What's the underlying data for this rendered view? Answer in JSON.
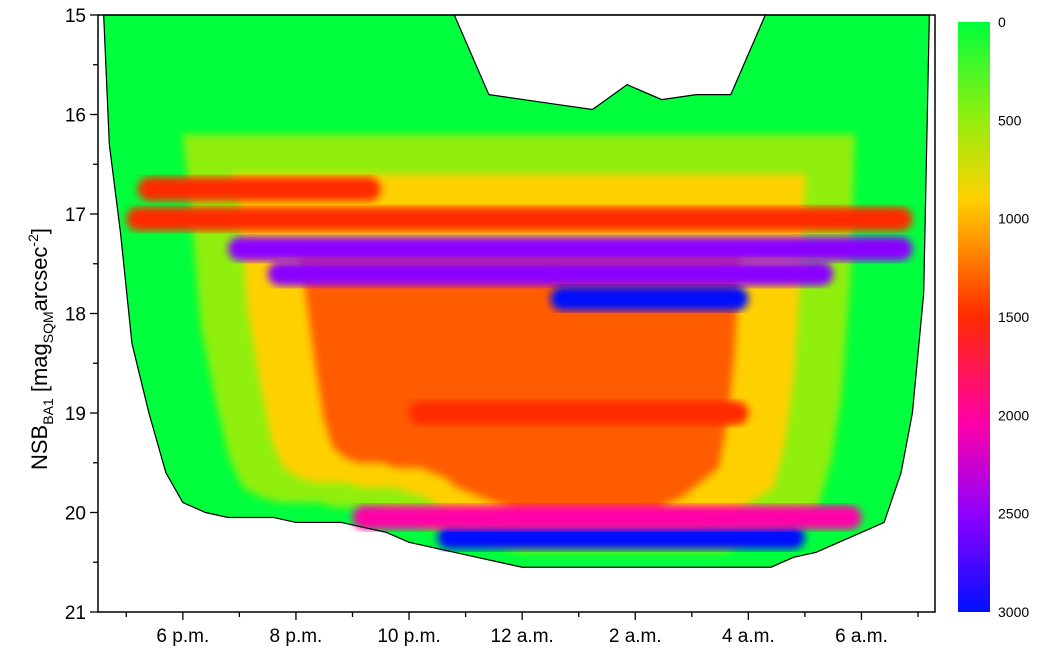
{
  "chart_data": {
    "type": "heatmap",
    "title": "",
    "xlabel": "",
    "ylabel": {
      "base": "NSB",
      "base_sub": "BA1",
      "mid": " [mag",
      "mid_sub": "SQM",
      "end": "arcsec",
      "end_sup": "-2",
      "close": "]"
    },
    "x_tick_labels": [
      "6 p.m.",
      "8 p.m.",
      "10 p.m.",
      "12 a.m.",
      "2 a.m.",
      "4 a.m.",
      "6 a.m."
    ],
    "x_tick_hours": [
      18,
      20,
      22,
      24,
      26,
      28,
      30
    ],
    "x_range_hours": [
      16.5,
      31.3
    ],
    "y_tick_labels": [
      "15",
      "16",
      "17",
      "18",
      "19",
      "20",
      "21"
    ],
    "y_tick_values": [
      15,
      16,
      17,
      18,
      19,
      20,
      21
    ],
    "ylim": [
      15,
      21
    ],
    "y_inverted": true,
    "colorbar": {
      "labels": [
        "0",
        "500",
        "1000",
        "1500",
        "2000",
        "2500",
        "3000"
      ],
      "values": [
        0,
        500,
        1000,
        1500,
        2000,
        2500,
        3000
      ],
      "colors": [
        "#00ff3c",
        "#90ef10",
        "#ffd000",
        "#ff2a00",
        "#ff00a8",
        "#8a00ff",
        "#0010ff"
      ]
    },
    "envelope": {
      "x_hours": [
        16.6,
        16.7,
        16.9,
        17.1,
        17.4,
        17.7,
        18.0,
        18.4,
        18.8,
        19.2,
        19.6,
        20.0,
        20.4,
        20.8,
        21.2,
        21.6,
        22.0,
        22.4,
        22.8,
        23.2,
        23.6,
        24.0,
        24.4,
        24.8,
        25.2,
        25.6,
        26.0,
        26.4,
        26.8,
        27.2,
        27.6,
        28.0,
        28.4,
        28.8,
        29.2,
        29.6,
        30.0,
        30.4,
        30.7,
        30.9,
        31.1,
        31.2
      ],
      "y_bottom": [
        15.0,
        16.3,
        17.2,
        18.3,
        19.0,
        19.6,
        19.9,
        20.0,
        20.05,
        20.05,
        20.05,
        20.1,
        20.1,
        20.1,
        20.15,
        20.2,
        20.3,
        20.35,
        20.4,
        20.45,
        20.5,
        20.55,
        20.55,
        20.55,
        20.55,
        20.55,
        20.55,
        20.55,
        20.55,
        20.55,
        20.55,
        20.55,
        20.55,
        20.45,
        20.4,
        20.3,
        20.2,
        20.1,
        19.6,
        19.0,
        17.8,
        15.0
      ],
      "gap_x_hours": [
        22.8,
        28.3
      ],
      "gap_y_bottom": [
        15.0,
        15.8,
        15.85,
        15.9,
        15.95,
        15.7,
        15.85,
        15.8,
        15.8,
        15.0
      ]
    },
    "bands": [
      {
        "y": 17.05,
        "x": [
          17.0,
          30.9
        ],
        "level": 1700
      },
      {
        "y": 17.35,
        "x": [
          18.8,
          30.9
        ],
        "level": 2700
      },
      {
        "y": 17.6,
        "x": [
          19.5,
          29.5
        ],
        "level": 2700
      },
      {
        "y": 17.85,
        "x": [
          24.5,
          28.0
        ],
        "level": 2800
      },
      {
        "y": 16.75,
        "x": [
          17.2,
          21.5
        ],
        "level": 1400
      },
      {
        "y": 20.25,
        "x": [
          22.5,
          29.0
        ],
        "level": 3000
      },
      {
        "y": 20.05,
        "x": [
          21.0,
          30.0
        ],
        "level": 2000
      },
      {
        "y": 19.0,
        "x": [
          22.0,
          28.0
        ],
        "level": 1300
      }
    ]
  }
}
